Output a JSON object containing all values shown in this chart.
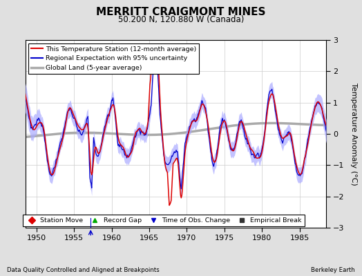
{
  "title": "MERRITT CRAIGMONT MINES",
  "subtitle": "50.200 N, 120.880 W (Canada)",
  "xlabel_left": "Data Quality Controlled and Aligned at Breakpoints",
  "xlabel_right": "Berkeley Earth",
  "ylabel": "Temperature Anomaly (°C)",
  "ylim": [
    -3,
    3
  ],
  "xlim": [
    1948.5,
    1988.5
  ],
  "xticks": [
    1950,
    1955,
    1960,
    1965,
    1970,
    1975,
    1980,
    1985
  ],
  "yticks": [
    -3,
    -2,
    -1,
    0,
    1,
    2,
    3
  ],
  "bg_color": "#e0e0e0",
  "plot_bg_color": "#ffffff",
  "station_color": "#dd0000",
  "regional_color": "#0000cc",
  "regional_fill_color": "#aaaaff",
  "global_color": "#aaaaaa",
  "legend_items": [
    {
      "label": "This Temperature Station (12-month average)",
      "color": "#dd0000",
      "lw": 1.5
    },
    {
      "label": "Regional Expectation with 95% uncertainty",
      "color": "#0000cc",
      "lw": 1.5
    },
    {
      "label": "Global Land (5-year average)",
      "color": "#aaaaaa",
      "lw": 2.5
    }
  ],
  "marker_legend": [
    {
      "marker": "D",
      "color": "#dd0000",
      "label": "Station Move"
    },
    {
      "marker": "^",
      "color": "#00aa00",
      "label": "Record Gap"
    },
    {
      "marker": "v",
      "color": "#0000cc",
      "label": "Time of Obs. Change"
    },
    {
      "marker": "s",
      "color": "#333333",
      "label": "Empirical Break"
    }
  ],
  "time_of_obs_x": [
    1957.2
  ]
}
